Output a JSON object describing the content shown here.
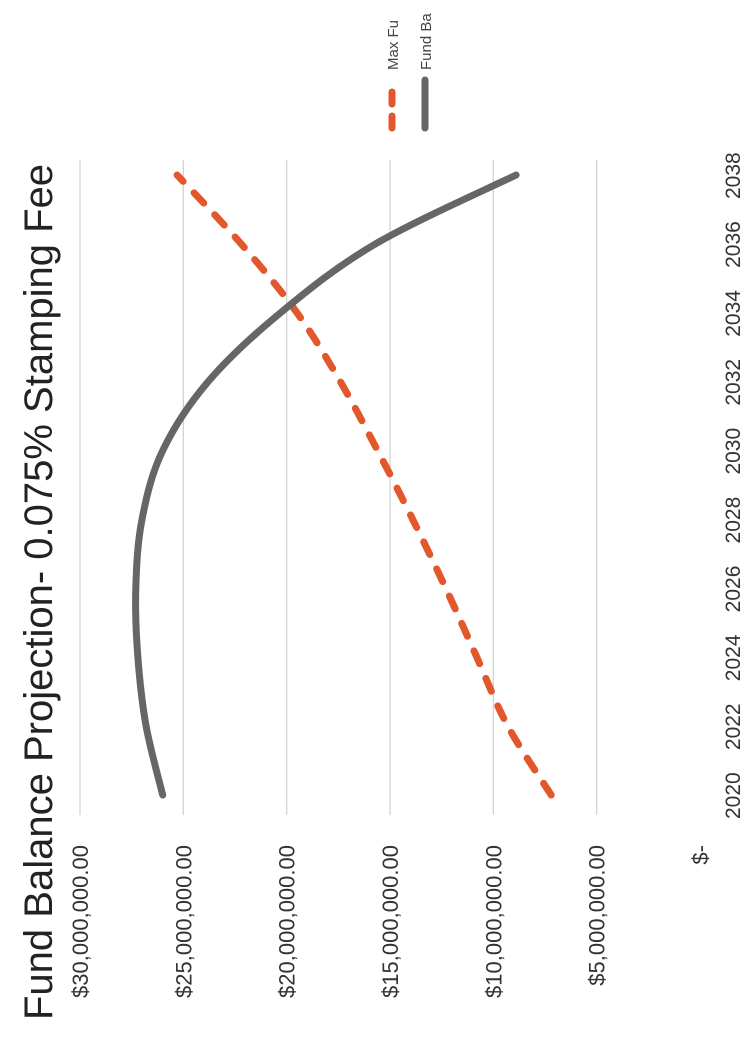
{
  "chart_data": {
    "type": "line",
    "title": "Fund Balance Projection- 0.075% Stamping Fee",
    "xlabel": "",
    "ylabel": "",
    "x_tick_labels": [
      "2020",
      "2022",
      "2024",
      "2026",
      "2028",
      "2030",
      "2032",
      "2034",
      "2036",
      "2038"
    ],
    "y_tick_labels": [
      "$-",
      "$5,000,000.00",
      "$10,000,000.00",
      "$15,000,000.00",
      "$20,000,000.00",
      "$25,000,000.00",
      "$30,000,000.00"
    ],
    "xlim": [
      2020,
      2038
    ],
    "ylim": [
      0,
      30000000
    ],
    "y_ticks": [
      0,
      5000000,
      10000000,
      15000000,
      20000000,
      25000000,
      30000000
    ],
    "x_ticks": [
      2020,
      2022,
      2024,
      2026,
      2028,
      2030,
      2032,
      2034,
      2036,
      2038
    ],
    "grid": true,
    "legend_position": "top-right",
    "orientation_note": "rotated",
    "series": [
      {
        "name": "Max Fu",
        "style": "dashed",
        "color": "#e2572b",
        "x": [
          2020,
          2022,
          2024,
          2026,
          2028,
          2030,
          2032,
          2034,
          2036,
          2038
        ],
        "y": [
          7200000,
          9300000,
          10800000,
          12300000,
          13900000,
          15600000,
          17400000,
          19500000,
          22200000,
          25300000
        ]
      },
      {
        "name": "Fund Ba",
        "style": "solid",
        "color": "#666666",
        "x": [
          2020,
          2022,
          2024,
          2026,
          2028,
          2030,
          2032,
          2034,
          2036,
          2038
        ],
        "y": [
          26000000,
          26800000,
          27200000,
          27300000,
          27000000,
          26000000,
          23800000,
          20300000,
          15700000,
          8900000
        ]
      }
    ]
  }
}
